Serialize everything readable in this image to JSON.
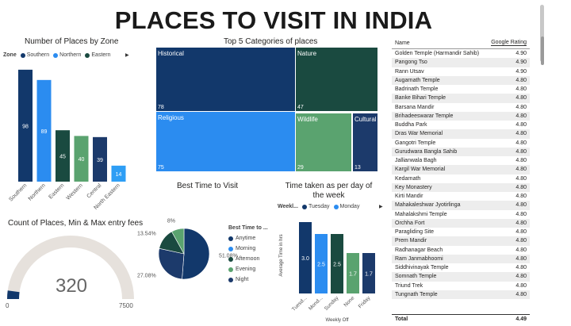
{
  "page_title": "PLACES TO VISIT IN INDIA",
  "colors": {
    "southern": "#12386b",
    "northern": "#2b8cf0",
    "eastern": "#1a4a40",
    "western": "#5aa36f",
    "central": "#1c3a6b",
    "north_eastern": "#2e9ef5",
    "gauge_track": "#e6e1dc"
  },
  "zone_chart": {
    "title": "Number of Places by Zone",
    "legend_label": "Zone",
    "legend_items": [
      "Southern",
      "Northern",
      "Eastern"
    ],
    "more_icon": "caret-right-icon"
  },
  "treemap": {
    "title": "Top 5 Categories of places",
    "cells": [
      {
        "label": "Historical",
        "value": "78"
      },
      {
        "label": "Nature",
        "value": "47"
      },
      {
        "label": "Religious",
        "value": "75"
      },
      {
        "label": "Wildlife",
        "value": "29"
      },
      {
        "label": "Cultural",
        "value": "13"
      }
    ]
  },
  "best_time": {
    "title": "Best Time to Visit",
    "legend_title": "Best Time to ...",
    "legend_items": [
      "Anytime",
      "Morning",
      "Afternoon",
      "Evening",
      "Night"
    ]
  },
  "weekly": {
    "title": "Time taken as per day of the week",
    "legend_label": "Weekl...",
    "legend_items": [
      "Tuesday",
      "Monday"
    ],
    "more_icon": "caret-right-icon"
  },
  "gauge": {
    "title": "Count of Places, Min & Max entry fees",
    "value": "320",
    "min": "0",
    "max": "7500",
    "fraction": 0.0427
  },
  "table": {
    "col_name": "Name",
    "col_rating": "Google Rating",
    "rows": [
      {
        "name": "Golden Temple (Harmandir Sahib)",
        "rating": "4.90"
      },
      {
        "name": "Pangong Tso",
        "rating": "4.90"
      },
      {
        "name": "Rann Utsav",
        "rating": "4.90"
      },
      {
        "name": "Augarnath Temple",
        "rating": "4.80"
      },
      {
        "name": "Badrinath Temple",
        "rating": "4.80"
      },
      {
        "name": "Banke Bihari Temple",
        "rating": "4.80"
      },
      {
        "name": "Barsana Mandir",
        "rating": "4.80"
      },
      {
        "name": "Brihadeeswarar Temple",
        "rating": "4.80"
      },
      {
        "name": "Buddha Park",
        "rating": "4.80"
      },
      {
        "name": "Dras War Memorial",
        "rating": "4.80"
      },
      {
        "name": "Gangotri Temple",
        "rating": "4.80"
      },
      {
        "name": "Gurudwara Bangla Sahib",
        "rating": "4.80"
      },
      {
        "name": "Jallianwala Bagh",
        "rating": "4.80"
      },
      {
        "name": "Kargil War Memorial",
        "rating": "4.80"
      },
      {
        "name": "Kedarnath",
        "rating": "4.80"
      },
      {
        "name": "Key Monastery",
        "rating": "4.80"
      },
      {
        "name": "Kirti Mandir",
        "rating": "4.80"
      },
      {
        "name": "Mahakaleshwar Jyotirlinga",
        "rating": "4.80"
      },
      {
        "name": "Mahalakshmi Temple",
        "rating": "4.80"
      },
      {
        "name": "Orchha Fort",
        "rating": "4.80"
      },
      {
        "name": "Paragliding Site",
        "rating": "4.80"
      },
      {
        "name": "Prem Mandir",
        "rating": "4.80"
      },
      {
        "name": "Radhanagar Beach",
        "rating": "4.80"
      },
      {
        "name": "Ram Janmabhoomi",
        "rating": "4.80"
      },
      {
        "name": "Siddhivinayak Temple",
        "rating": "4.80"
      },
      {
        "name": "Somnath Temple",
        "rating": "4.80"
      },
      {
        "name": "Triund Trek",
        "rating": "4.80"
      },
      {
        "name": "Tungnath Temple",
        "rating": "4.80"
      }
    ],
    "total_label": "Total",
    "total_value": "4.49"
  },
  "chart_data": [
    {
      "type": "bar",
      "title": "Number of Places by Zone",
      "categories": [
        "Southern",
        "Northern",
        "Eastern",
        "Western",
        "Central",
        "North Eastern"
      ],
      "values": [
        98,
        89,
        45,
        40,
        39,
        14
      ],
      "ylim": [
        0,
        100
      ],
      "data_labels": true
    },
    {
      "type": "heatmap",
      "title": "Top 5 Categories of places",
      "categories": [
        "Historical",
        "Nature",
        "Religious",
        "Wildlife",
        "Cultural"
      ],
      "values": [
        78,
        47,
        75,
        29,
        13
      ]
    },
    {
      "type": "pie",
      "title": "Best Time to Visit",
      "categories": [
        "Anytime",
        "Morning",
        "Afternoon",
        "Evening",
        "Night"
      ],
      "values": [
        51.08,
        0,
        13.54,
        8,
        27.08
      ],
      "data_labels": [
        "51.08%",
        "",
        "13.54%",
        "8%",
        "27.08%"
      ],
      "legend": "right"
    },
    {
      "type": "bar",
      "title": "Time taken as per day of the week",
      "xlabel": "Weekly Off",
      "ylabel": "Average Time in hrs",
      "categories": [
        "Tuesd...",
        "Mond...",
        "Sunday",
        "None",
        "Friday"
      ],
      "values": [
        3.0,
        2.5,
        2.5,
        1.7,
        1.7
      ],
      "data_labels": [
        "3.0",
        "2.5",
        "2.5",
        "1.7",
        "1.7"
      ],
      "ylim": [
        0,
        3.2
      ]
    }
  ]
}
